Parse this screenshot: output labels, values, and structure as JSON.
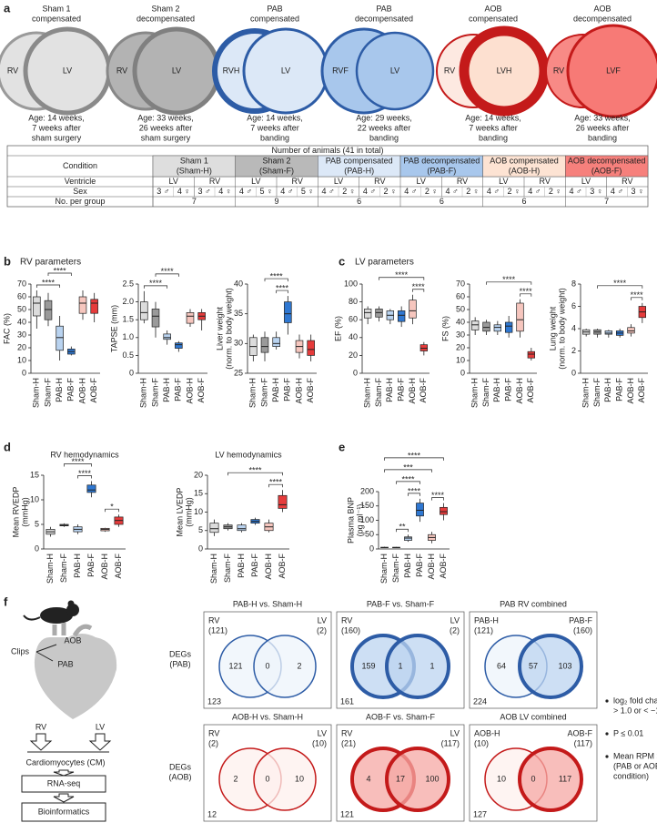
{
  "panels": {
    "a": "a",
    "b": "b",
    "c": "c",
    "d": "d",
    "e": "e",
    "f": "f",
    "b_title": "RV parameters",
    "c_title": "LV parameters"
  },
  "diagrams": [
    {
      "title": [
        "Sham 1",
        "compensated"
      ],
      "left": "RV",
      "right": "LV",
      "caption": [
        "Age: 14 weeks,",
        "7 weeks after",
        "sham surgery"
      ]
    },
    {
      "title": [
        "Sham 2",
        "decompensated"
      ],
      "left": "RV",
      "right": "LV",
      "caption": [
        "Age: 33 weeks,",
        "26 weeks after",
        "sham surgery"
      ]
    },
    {
      "title": [
        "PAB",
        "compensated"
      ],
      "left": "RVH",
      "right": "LV",
      "caption": [
        "Age: 14 weeks,",
        "7 weeks after",
        "banding"
      ]
    },
    {
      "title": [
        "PAB",
        "decompensated"
      ],
      "left": "RVF",
      "right": "LV",
      "caption": [
        "Age: 29 weeks,",
        "22 weeks after",
        "banding"
      ]
    },
    {
      "title": [
        "AOB",
        "compensated"
      ],
      "left": "RV",
      "right": "LVH",
      "caption": [
        "Age: 14 weeks,",
        "7 weeks after",
        "banding"
      ]
    },
    {
      "title": [
        "AOB",
        "decompensated"
      ],
      "left": "RV",
      "right": "LVF",
      "caption": [
        "Age: 33 weeks,",
        "26 weeks after",
        "banding"
      ]
    }
  ],
  "table": {
    "caption": "Number of animals (41 in total)",
    "row_labels": [
      "Condition",
      "Ventricle",
      "Sex",
      "No. per group"
    ],
    "groups": [
      {
        "name": [
          "Sham 1",
          "(Sham-H)"
        ],
        "ventricles": [
          "LV",
          "RV"
        ],
        "sex": [
          "3 ♂",
          "4 ♀",
          "3 ♂",
          "4 ♀"
        ],
        "n": 7
      },
      {
        "name": [
          "Sham 2",
          "(Sham-F)"
        ],
        "ventricles": [
          "LV",
          "RV"
        ],
        "sex": [
          "4 ♂",
          "5 ♀",
          "4 ♂",
          "5 ♀"
        ],
        "n": 9
      },
      {
        "name": [
          "PAB compensated",
          "(PAB-H)"
        ],
        "ventricles": [
          "LV",
          "RV"
        ],
        "sex": [
          "4 ♂",
          "2 ♀",
          "4 ♂",
          "2 ♀"
        ],
        "n": 6
      },
      {
        "name": [
          "PAB decompensated",
          "(PAB-F)"
        ],
        "ventricles": [
          "LV",
          "RV"
        ],
        "sex": [
          "4 ♂",
          "2 ♀",
          "4 ♂",
          "2 ♀"
        ],
        "n": 6
      },
      {
        "name": [
          "AOB compensated",
          "(AOB-H)"
        ],
        "ventricles": [
          "LV",
          "RV"
        ],
        "sex": [
          "4 ♂",
          "2 ♀",
          "4 ♂",
          "2 ♀"
        ],
        "n": 6
      },
      {
        "name": [
          "AOB decompensated",
          "(AOB-F)"
        ],
        "ventricles": [
          "LV",
          "RV"
        ],
        "sex": [
          "4 ♂",
          "3 ♀",
          "4 ♂",
          "3 ♀"
        ],
        "n": 7
      }
    ]
  },
  "chart_data": [
    {
      "type": "box",
      "ylabel": [
        "FAC (%)"
      ],
      "categories": [
        "Sham-H",
        "Sham-F",
        "PAB-H",
        "PAB-F",
        "AOB-H",
        "AOB-F"
      ],
      "colors": [
        "#dcdcdc",
        "#9a9a9a",
        "#b9d3f0",
        "#2f78d2",
        "#f6c6be",
        "#e63b3b"
      ],
      "ylim": [
        0,
        70
      ],
      "yticks": [
        0,
        10,
        20,
        30,
        40,
        50,
        60,
        70
      ],
      "boxes": [
        [
          35,
          45,
          55,
          60,
          65
        ],
        [
          37,
          42,
          50,
          57,
          63
        ],
        [
          10,
          18,
          28,
          37,
          45
        ],
        [
          14,
          15,
          17,
          19,
          21
        ],
        [
          42,
          47,
          55,
          60,
          65
        ],
        [
          40,
          47,
          55,
          58,
          63
        ]
      ],
      "brackets": [
        {
          "from": 0,
          "to": 2,
          "label": "****"
        },
        {
          "from": 1,
          "to": 3,
          "label": "****"
        }
      ]
    },
    {
      "type": "box",
      "ylabel": [
        "TAPSE (mm)"
      ],
      "categories": [
        "Sham-H",
        "Sham-F",
        "PAB-H",
        "PAB-F",
        "AOB-H",
        "AOB-F"
      ],
      "colors": [
        "#dcdcdc",
        "#9a9a9a",
        "#b9d3f0",
        "#2f78d2",
        "#f6c6be",
        "#e63b3b"
      ],
      "ylim": [
        0,
        2.5
      ],
      "yticks": [
        0,
        0.5,
        {
          "value": 1,
          "label": "1.0"
        },
        1.5,
        {
          "value": 2,
          "label": "2.0"
        },
        2.5
      ],
      "boxes": [
        [
          1.4,
          1.5,
          1.7,
          2.0,
          2.3
        ],
        [
          1.0,
          1.3,
          1.6,
          1.8,
          2.0
        ],
        [
          0.8,
          0.95,
          1.0,
          1.1,
          1.2
        ],
        [
          0.6,
          0.7,
          0.8,
          0.85,
          0.9
        ],
        [
          1.3,
          1.4,
          1.6,
          1.7,
          1.8
        ],
        [
          1.2,
          1.5,
          1.6,
          1.7,
          1.8
        ]
      ],
      "brackets": [
        {
          "from": 0,
          "to": 2,
          "label": "****"
        },
        {
          "from": 1,
          "to": 3,
          "label": "****"
        }
      ]
    },
    {
      "type": "box",
      "ylabel": [
        "Liver weight",
        "(norm. to body weight)"
      ],
      "categories": [
        "Sham-H",
        "Sham-F",
        "PAB-H",
        "PAB-F",
        "AOB-H",
        "AOB-F"
      ],
      "colors": [
        "#dcdcdc",
        "#9a9a9a",
        "#b9d3f0",
        "#2f78d2",
        "#f6c6be",
        "#e63b3b"
      ],
      "ylim": [
        25,
        40
      ],
      "yticks": [
        25,
        30,
        35,
        40
      ],
      "boxes": [
        [
          27,
          28,
          29.5,
          31,
          31.5
        ],
        [
          27,
          28.5,
          29.5,
          31,
          32
        ],
        [
          29,
          29.5,
          30,
          31,
          32
        ],
        [
          31.5,
          33.5,
          35,
          37,
          38
        ],
        [
          27.5,
          28.5,
          29.5,
          30.5,
          31.5
        ],
        [
          27,
          28,
          29,
          30.5,
          31.5
        ]
      ],
      "brackets": [
        {
          "from": 2,
          "to": 3,
          "label": "****"
        },
        {
          "from": 1,
          "to": 3,
          "label": "****"
        }
      ]
    },
    {
      "type": "box",
      "ylabel": [
        "EF (%)"
      ],
      "categories": [
        "Sham-H",
        "Sham-F",
        "PAB-H",
        "PAB-F",
        "AOB-H",
        "AOB-F"
      ],
      "colors": [
        "#dcdcdc",
        "#9a9a9a",
        "#b9d3f0",
        "#2f78d2",
        "#f6c6be",
        "#e63b3b"
      ],
      "ylim": [
        0,
        100
      ],
      "yticks": [
        0,
        20,
        40,
        60,
        80,
        100
      ],
      "boxes": [
        [
          55,
          62,
          68,
          72,
          75
        ],
        [
          58,
          63,
          68,
          72,
          75
        ],
        [
          55,
          60,
          65,
          70,
          72
        ],
        [
          52,
          58,
          65,
          70,
          75
        ],
        [
          55,
          62,
          70,
          82,
          88
        ],
        [
          20,
          25,
          28,
          32,
          35
        ]
      ],
      "brackets": [
        {
          "from": 4,
          "to": 5,
          "label": "****"
        },
        {
          "from": 1,
          "to": 5,
          "label": "****"
        }
      ]
    },
    {
      "type": "box",
      "ylabel": [
        "FS (%)"
      ],
      "categories": [
        "Sham-H",
        "Sham-F",
        "PAB-H",
        "PAB-F",
        "AOB-H",
        "AOB-F"
      ],
      "colors": [
        "#dcdcdc",
        "#9a9a9a",
        "#b9d3f0",
        "#2f78d2",
        "#f6c6be",
        "#e63b3b"
      ],
      "ylim": [
        0,
        70
      ],
      "yticks": [
        0,
        10,
        20,
        30,
        40,
        50,
        60,
        70
      ],
      "boxes": [
        [
          30,
          34,
          38,
          41,
          44
        ],
        [
          30,
          33,
          36,
          40,
          42
        ],
        [
          30,
          33,
          36,
          38,
          41
        ],
        [
          28,
          32,
          37,
          40,
          45
        ],
        [
          28,
          33,
          42,
          55,
          58
        ],
        [
          10,
          12,
          15,
          17,
          20
        ]
      ],
      "brackets": [
        {
          "from": 4,
          "to": 5,
          "label": "****"
        },
        {
          "from": 1,
          "to": 5,
          "label": "****"
        }
      ]
    },
    {
      "type": "box",
      "ylabel": [
        "Lung weight",
        "(norm. to body weight)"
      ],
      "categories": [
        "Sham-H",
        "Sham-F",
        "PAB-H",
        "PAB-F",
        "AOB-H",
        "AOB-F"
      ],
      "colors": [
        "#dcdcdc",
        "#9a9a9a",
        "#b9d3f0",
        "#2f78d2",
        "#f6c6be",
        "#e63b3b"
      ],
      "ylim": [
        0,
        8
      ],
      "yticks": [
        0,
        2,
        4,
        6,
        8
      ],
      "boxes": [
        [
          3.3,
          3.5,
          3.7,
          3.9,
          4
        ],
        [
          3.2,
          3.5,
          3.7,
          3.9,
          4
        ],
        [
          3.2,
          3.5,
          3.6,
          3.8,
          3.9
        ],
        [
          3.2,
          3.4,
          3.6,
          3.8,
          4
        ],
        [
          3.3,
          3.6,
          3.8,
          4.1,
          4.4
        ],
        [
          4.5,
          5,
          5.5,
          6,
          6.3
        ]
      ],
      "brackets": [
        {
          "from": 4,
          "to": 5,
          "label": "****"
        },
        {
          "from": 1,
          "to": 5,
          "label": "****"
        }
      ]
    },
    {
      "type": "box",
      "title": "RV hemodynamics",
      "ylabel": [
        "Mean RVEDP",
        "(mmHg)"
      ],
      "categories": [
        "Sham-H",
        "Sham-F",
        "PAB-H",
        "PAB-F",
        "AOB-H",
        "AOB-F"
      ],
      "colors": [
        "#dcdcdc",
        "#9a9a9a",
        "#b9d3f0",
        "#2f78d2",
        "#f6c6be",
        "#e63b3b"
      ],
      "ylim": [
        0,
        15
      ],
      "yticks": [
        0,
        5,
        10,
        15
      ],
      "boxes": [
        [
          2.5,
          3,
          3.5,
          4,
          4.5
        ],
        [
          4.5,
          4.7,
          4.8,
          5,
          5.2
        ],
        [
          3,
          3.5,
          4,
          4.5,
          5
        ],
        [
          10.5,
          11.5,
          12,
          13,
          13.8
        ],
        [
          3.5,
          3.7,
          4,
          4.2,
          4.3
        ],
        [
          4.5,
          5,
          5.8,
          6.5,
          7
        ]
      ],
      "brackets": [
        {
          "from": 2,
          "to": 3,
          "label": "****"
        },
        {
          "from": 4,
          "to": 5,
          "label": "*"
        },
        {
          "from": 1,
          "to": 3,
          "label": "****"
        }
      ]
    },
    {
      "type": "box",
      "title": "LV hemodynamics",
      "ylabel": [
        "Mean LVEDP",
        "(mmHg)"
      ],
      "categories": [
        "Sham-H",
        "Sham-F",
        "PAB-H",
        "PAB-F",
        "AOB-H",
        "AOB-F"
      ],
      "colors": [
        "#dcdcdc",
        "#9a9a9a",
        "#b9d3f0",
        "#2f78d2",
        "#f6c6be",
        "#e63b3b"
      ],
      "ylim": [
        0,
        20
      ],
      "yticks": [
        0,
        5,
        10,
        15,
        20
      ],
      "boxes": [
        [
          3.5,
          4.5,
          5.5,
          7,
          8
        ],
        [
          5,
          5.5,
          6,
          6.5,
          7
        ],
        [
          4.5,
          5,
          5.5,
          6.5,
          7
        ],
        [
          6.5,
          7,
          7.5,
          8,
          8.5
        ],
        [
          4.5,
          5,
          6,
          7,
          8
        ],
        [
          10,
          11,
          12,
          14.5,
          16
        ]
      ],
      "brackets": [
        {
          "from": 4,
          "to": 5,
          "label": "****"
        },
        {
          "from": 1,
          "to": 5,
          "label": "****"
        }
      ]
    },
    {
      "type": "box",
      "ylabel": [
        "Plasma BNP",
        "(pg ml⁻¹)"
      ],
      "categories": [
        "Sham-H",
        "Sham-F",
        "PAB-H",
        "PAB-F",
        "AOB-H",
        "AOB-F"
      ],
      "colors": [
        "#dcdcdc",
        "#9a9a9a",
        "#b9d3f0",
        "#2f78d2",
        "#f6c6be",
        "#e63b3b"
      ],
      "ylim": [
        0,
        200
      ],
      "yticks": [
        0,
        50,
        100,
        150,
        200
      ],
      "boxes": [
        [
          3,
          4,
          5,
          6,
          8
        ],
        [
          3,
          4,
          5,
          6,
          7
        ],
        [
          25,
          30,
          38,
          42,
          50
        ],
        [
          95,
          115,
          135,
          160,
          175
        ],
        [
          20,
          30,
          40,
          50,
          60
        ],
        [
          100,
          120,
          130,
          145,
          160
        ]
      ],
      "brackets": [
        {
          "from": 1,
          "to": 2,
          "label": "**"
        },
        {
          "from": 2,
          "to": 3,
          "label": "****"
        },
        {
          "from": 4,
          "to": 5,
          "label": "****"
        },
        {
          "from": 1,
          "to": 3,
          "label": "****"
        },
        {
          "from": 0,
          "to": 4,
          "label": "***"
        },
        {
          "from": 0,
          "to": 5,
          "label": "****"
        }
      ]
    }
  ],
  "workflow": {
    "labels": [
      "AOB",
      "Clips",
      "PAB"
    ],
    "ventricles": [
      "RV",
      "LV"
    ],
    "cells": "Cardiomyocytes (CM)",
    "steps": [
      "RNA-seq",
      "Bioinformatics"
    ]
  },
  "venn": {
    "row_labels": [
      [
        "DEGs",
        "(PAB)"
      ],
      [
        "DEGs",
        "(AOB)"
      ]
    ],
    "boxes": [
      {
        "title": "PAB-H vs. Sham-H",
        "left": "RV",
        "left_count": "(121)",
        "right": "LV",
        "right_count": "(2)",
        "regions": [
          "121",
          "0",
          "2"
        ],
        "total": "123"
      },
      {
        "title": "PAB-F vs. Sham-F",
        "left": "RV",
        "left_count": "(160)",
        "right": "LV",
        "right_count": "(2)",
        "regions": [
          "159",
          "1",
          "1"
        ],
        "total": "161"
      },
      {
        "title": "PAB RV combined",
        "left": "PAB-H",
        "left_count": "(121)",
        "right": "PAB-F",
        "right_count": "(160)",
        "regions": [
          "64",
          "57",
          "103"
        ],
        "total": "224"
      },
      {
        "title": "AOB-H vs. Sham-H",
        "left": "RV",
        "left_count": "(2)",
        "right": "LV",
        "right_count": "(10)",
        "regions": [
          "2",
          "0",
          "10"
        ],
        "total": "12"
      },
      {
        "title": "AOB-F vs. Sham-F",
        "left": "RV",
        "left_count": "(21)",
        "right": "LV",
        "right_count": "(117)",
        "regions": [
          "4",
          "17",
          "100"
        ],
        "total": "121"
      },
      {
        "title": "AOB LV combined",
        "left": "AOB-H",
        "left_count": "(10)",
        "right": "AOB-F",
        "right_count": "(117)",
        "regions": [
          "10",
          "0",
          "117"
        ],
        "total": "127"
      }
    ],
    "criteria": [
      [
        "log₂ fold change",
        "> 1.0 or < −1.0"
      ],
      [
        "P ≤ 0.01"
      ],
      [
        "Mean RPM > 50",
        "(PAB or AOB",
        "condition)"
      ]
    ]
  }
}
